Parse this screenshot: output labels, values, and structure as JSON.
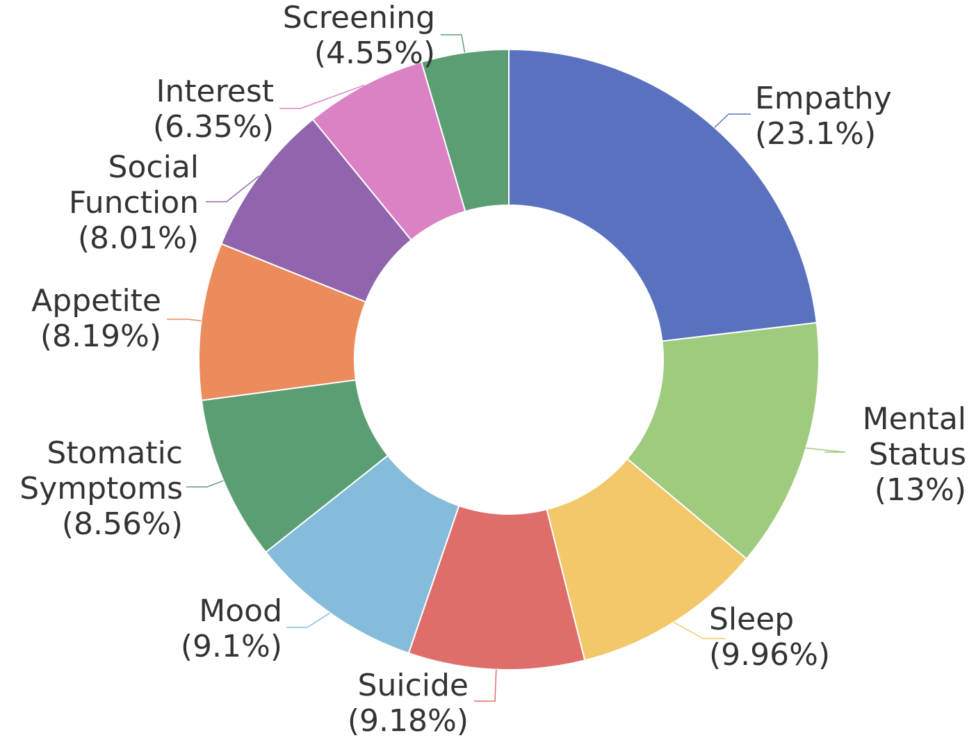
{
  "chart_data": {
    "type": "pie",
    "variant": "donut",
    "title": "",
    "slices": [
      {
        "name": "Empathy",
        "value": 23.1,
        "label_lines": [
          "Empathy"
        ],
        "pct_text": "(23.1%)",
        "color": "#5a71c0",
        "side": "right"
      },
      {
        "name": "Mental Status",
        "value": 13,
        "label_lines": [
          "Mental",
          "Status"
        ],
        "pct_text": "(13%)",
        "color": "#9fcb7e",
        "side": "right"
      },
      {
        "name": "Sleep",
        "value": 9.96,
        "label_lines": [
          "Sleep"
        ],
        "pct_text": "(9.96%)",
        "color": "#f3c86b",
        "side": "right"
      },
      {
        "name": "Suicide",
        "value": 9.18,
        "label_lines": [
          "Suicide"
        ],
        "pct_text": "(9.18%)",
        "color": "#df6e6a",
        "side": "bottom"
      },
      {
        "name": "Mood",
        "value": 9.1,
        "label_lines": [
          "Mood"
        ],
        "pct_text": "(9.1%)",
        "color": "#85bcdb",
        "side": "left"
      },
      {
        "name": "Stomatic Symptoms",
        "value": 8.56,
        "label_lines": [
          "Stomatic",
          "Symptoms"
        ],
        "pct_text": "(8.56%)",
        "color": "#5b9e74",
        "side": "left"
      },
      {
        "name": "Appetite",
        "value": 8.19,
        "label_lines": [
          "Appetite"
        ],
        "pct_text": "(8.19%)",
        "color": "#ec8b5c",
        "side": "left"
      },
      {
        "name": "Social Function",
        "value": 8.01,
        "label_lines": [
          "Social",
          "Function"
        ],
        "pct_text": "(8.01%)",
        "color": "#9165ad",
        "side": "left"
      },
      {
        "name": "Interest",
        "value": 6.35,
        "label_lines": [
          "Interest"
        ],
        "pct_text": "(6.35%)",
        "color": "#db82c5",
        "side": "left"
      },
      {
        "name": "Screening",
        "value": 4.55,
        "label_lines": [
          "Screening"
        ],
        "pct_text": "(4.55%)",
        "color": "#5b9e74",
        "side": "top"
      }
    ]
  }
}
